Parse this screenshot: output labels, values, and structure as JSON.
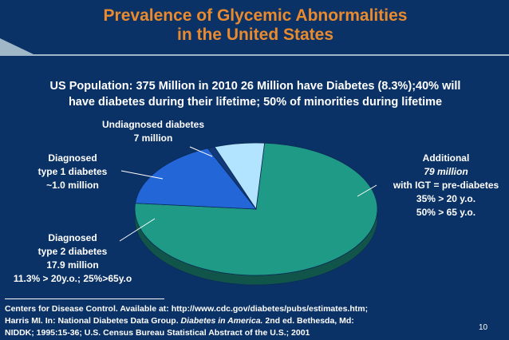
{
  "slide": {
    "title_line1": "Prevalence of Glycemic Abnormalities",
    "title_line2": "in the United States",
    "subtitle_line1": "US Population: 375 Million in 2010 26 Million have Diabetes (8.3%);40% will",
    "subtitle_line2": "have diabetes during their lifetime; 50% of minorities during lifetime",
    "page_number": "10"
  },
  "references": {
    "line1": "Centers for Disease Control. Available at: http://www.cdc.gov/diabetes/pubs/estimates.htm;",
    "line2_pre": "Harris MI. In: National Diabetes Data Group. ",
    "line2_italic": "Diabetes in America.",
    "line2_post": " 2nd ed. Bethesda, Md:",
    "line3": "NIDDK; 1995:15-36; U.S. Census Bureau Statistical Abstract of the U.S.; 2001"
  },
  "chart_data": {
    "type": "pie",
    "title": "",
    "units": "million",
    "slices": [
      {
        "key": "igt",
        "value": 79,
        "color": "#1e9a86",
        "label_lines": [
          "Additional",
          "79 million",
          "with IGT = pre-diabetes",
          "35% > 20 y.o.",
          "50% > 65 y.o."
        ]
      },
      {
        "key": "type2",
        "value": 17.9,
        "color": "#2266d8",
        "label_lines": [
          "Diagnosed",
          "type 2 diabetes",
          "17.9 million",
          "11.3% > 20y.o.; 25%>65y.o"
        ]
      },
      {
        "key": "type1",
        "value": 1.0,
        "color": "#123a7a",
        "label_lines": [
          "Diagnosed",
          "type 1 diabetes",
          "~1.0 million"
        ]
      },
      {
        "key": "undiagnosed",
        "value": 7,
        "color": "#b3e4ff",
        "label_lines": [
          "Undiagnosed diabetes",
          "7 million"
        ]
      }
    ]
  }
}
